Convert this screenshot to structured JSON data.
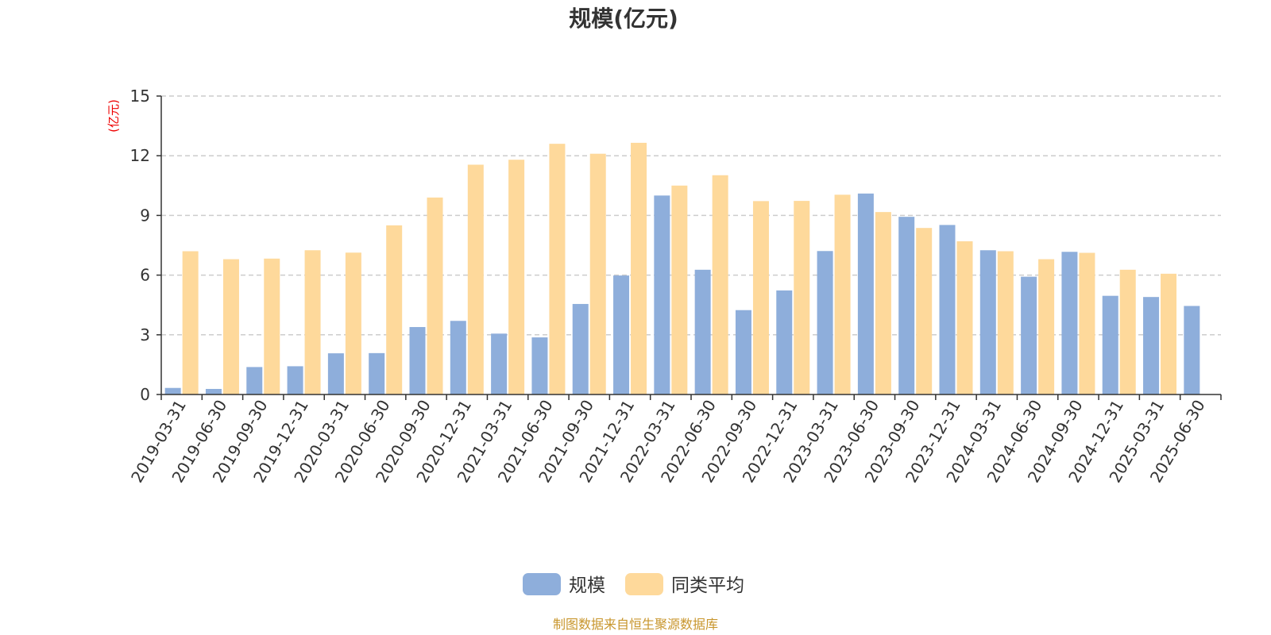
{
  "chart_data": {
    "type": "bar",
    "title": "规模(亿元)",
    "ylabel": "(亿元)",
    "ylim": [
      0,
      15
    ],
    "yticks": [
      "0",
      "3",
      "6",
      "9",
      "12",
      "15"
    ],
    "grid": true,
    "legend_position": "bottom",
    "categories": [
      "2019-03-31",
      "2019-06-30",
      "2019-09-30",
      "2019-12-31",
      "2020-03-31",
      "2020-06-30",
      "2020-09-30",
      "2020-12-31",
      "2021-03-31",
      "2021-06-30",
      "2021-09-30",
      "2021-12-31",
      "2022-03-31",
      "2022-06-30",
      "2022-09-30",
      "2022-12-31",
      "2023-03-31",
      "2023-06-30",
      "2023-09-30",
      "2023-12-31",
      "2024-03-31",
      "2024-06-30",
      "2024-09-30",
      "2024-12-31",
      "2025-03-31",
      "2025-06-30"
    ],
    "series": [
      {
        "name": "规模",
        "color": "#8eaedb",
        "values": [
          0.33,
          0.28,
          1.38,
          1.42,
          2.07,
          2.08,
          3.39,
          3.7,
          3.06,
          2.87,
          4.55,
          5.98,
          10.0,
          6.27,
          4.24,
          5.23,
          7.21,
          10.1,
          8.93,
          8.52,
          7.25,
          5.92,
          7.17,
          4.96,
          4.9,
          4.45
        ]
      },
      {
        "name": "同类平均",
        "color": "#fed99b",
        "values": [
          7.2,
          6.8,
          6.83,
          7.25,
          7.13,
          8.5,
          9.9,
          11.55,
          11.8,
          12.6,
          12.1,
          12.65,
          10.5,
          11.02,
          9.72,
          9.73,
          10.04,
          9.17,
          8.37,
          7.7,
          7.2,
          6.8,
          7.12,
          6.27,
          6.07,
          null
        ]
      }
    ]
  },
  "footer": {
    "source": "制图数据来自恒生聚源数据库"
  }
}
